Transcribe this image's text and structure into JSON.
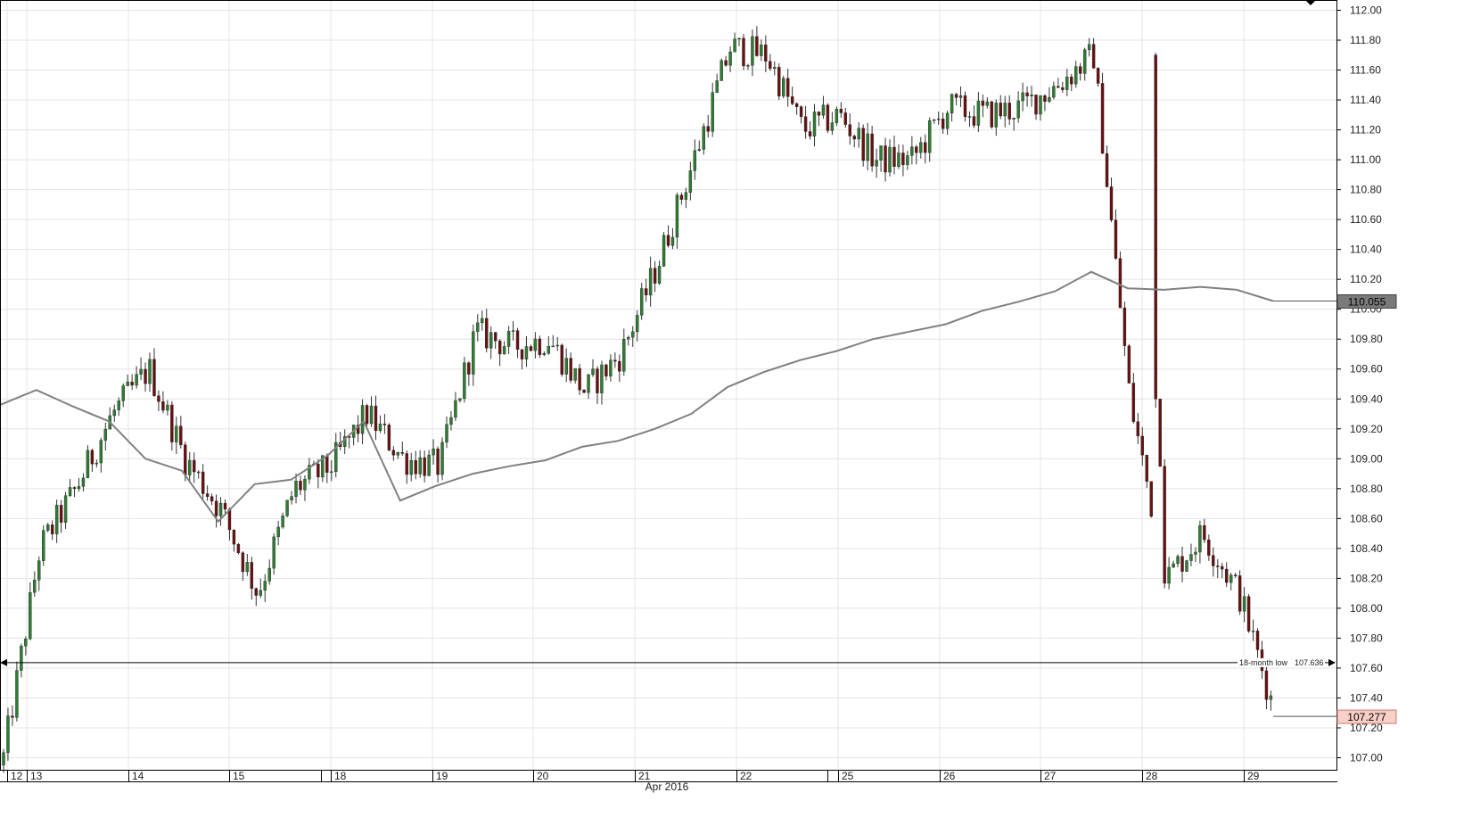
{
  "chart_data": {
    "type": "candlestick",
    "title": "",
    "xlabel": "Apr 2016",
    "ylabel": "",
    "ylim": [
      106.9,
      112.05
    ],
    "yticks": [
      "112.00",
      "111.80",
      "111.60",
      "111.40",
      "111.20",
      "111.00",
      "110.80",
      "110.60",
      "110.40",
      "110.20",
      "110.00",
      "109.80",
      "109.60",
      "109.40",
      "109.20",
      "109.00",
      "108.80",
      "108.60",
      "108.40",
      "108.20",
      "108.00",
      "107.80",
      "107.60",
      "107.40",
      "107.20",
      "107.00"
    ],
    "xticks": [
      "12",
      "13",
      "14",
      "15",
      "18",
      "19",
      "20",
      "21",
      "22",
      "25",
      "26",
      "27",
      "28",
      "29"
    ],
    "grid": true,
    "colors": {
      "up": "#2e7d32",
      "down": "#6b1010",
      "wick": "#333333",
      "moving_average": "#808080",
      "grid": "#e4e4e4",
      "current_price_bg": "#f8d0c8",
      "ma_price_bg": "#7a7a7a"
    },
    "session_points": [
      [
        107.0,
        109.36
      ],
      [
        108.4,
        109.46
      ],
      [
        108.8,
        109.35
      ],
      [
        109.3,
        109.25
      ],
      [
        109.6,
        109.0
      ],
      [
        109.0,
        108.92
      ],
      [
        108.65,
        108.58
      ],
      [
        108.1,
        108.83
      ],
      [
        108.8,
        108.86
      ],
      [
        108.95,
        109.02
      ],
      [
        109.3,
        109.25
      ],
      [
        109.0,
        108.72
      ],
      [
        108.95,
        108.82
      ],
      [
        109.85,
        108.9
      ],
      [
        109.75,
        108.95
      ],
      [
        109.8,
        108.99
      ],
      [
        109.45,
        109.08
      ],
      [
        109.7,
        109.12
      ],
      [
        110.3,
        109.2
      ],
      [
        111.0,
        109.3
      ],
      [
        111.75,
        109.48
      ],
      [
        111.7,
        109.58
      ],
      [
        111.2,
        109.66
      ],
      [
        111.3,
        109.72
      ],
      [
        111.0,
        109.8
      ],
      [
        111.0,
        109.85
      ],
      [
        111.35,
        109.9
      ],
      [
        111.3,
        109.99
      ],
      [
        111.35,
        110.05
      ],
      [
        111.5,
        110.12
      ],
      [
        111.7,
        110.25
      ],
      [
        109.4,
        110.14
      ],
      [
        108.2,
        110.13
      ],
      [
        108.5,
        110.15
      ],
      [
        108.1,
        110.13
      ],
      [
        107.3,
        110.055
      ]
    ],
    "moving_average_last": 110.055,
    "current_price": 107.277,
    "annotation": {
      "label": "18-month low",
      "value": 107.636
    }
  },
  "labels": {
    "ma_badge": "110.055",
    "price_badge": "107.277",
    "low_label": "18-month low",
    "low_value": "107.636",
    "month": "Apr 2016"
  }
}
